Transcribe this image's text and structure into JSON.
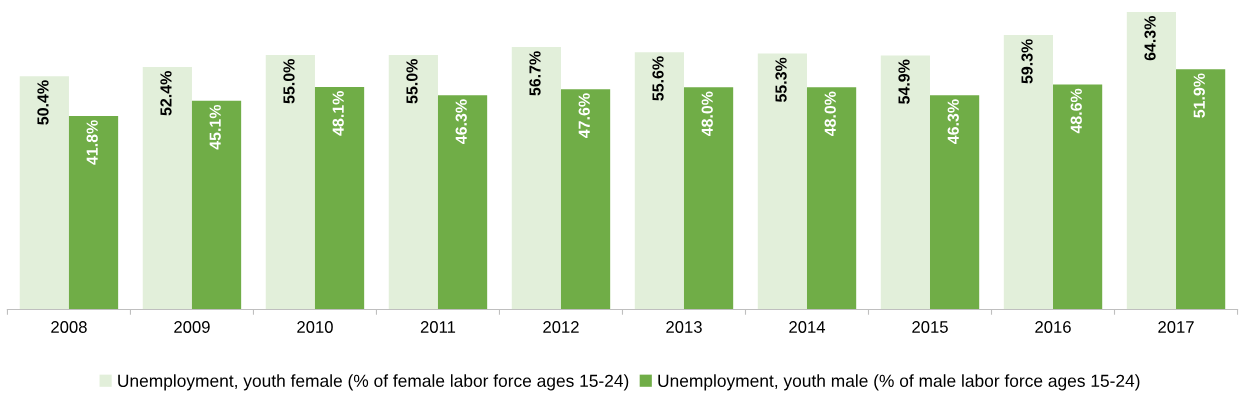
{
  "chart_data": {
    "type": "bar",
    "categories": [
      "2008",
      "2009",
      "2010",
      "2011",
      "2012",
      "2013",
      "2014",
      "2015",
      "2016",
      "2017"
    ],
    "series": [
      {
        "name": "Unemployment, youth female (% of female labor force ages 15-24)",
        "color": "#e2efda",
        "values": [
          50.4,
          52.4,
          55.0,
          55.0,
          56.7,
          55.6,
          55.3,
          54.9,
          59.3,
          64.3
        ],
        "value_labels": [
          "50.4%",
          "52.4%",
          "55.0%",
          "55.0%",
          "56.7%",
          "55.6%",
          "55.3%",
          "54.9%",
          "59.3%",
          "64.3%"
        ]
      },
      {
        "name": "Unemployment, youth male (% of male labor force ages 15-24)",
        "color": "#70ad47",
        "values": [
          41.8,
          45.1,
          48.1,
          46.3,
          47.6,
          48.0,
          48.0,
          46.3,
          48.6,
          51.9
        ],
        "value_labels": [
          "41.8%",
          "45.1%",
          "48.1%",
          "46.3%",
          "47.6%",
          "48.0%",
          "48.0%",
          "46.3%",
          "48.6%",
          "51.9%"
        ]
      }
    ],
    "legend": "bottom",
    "grid": false
  }
}
